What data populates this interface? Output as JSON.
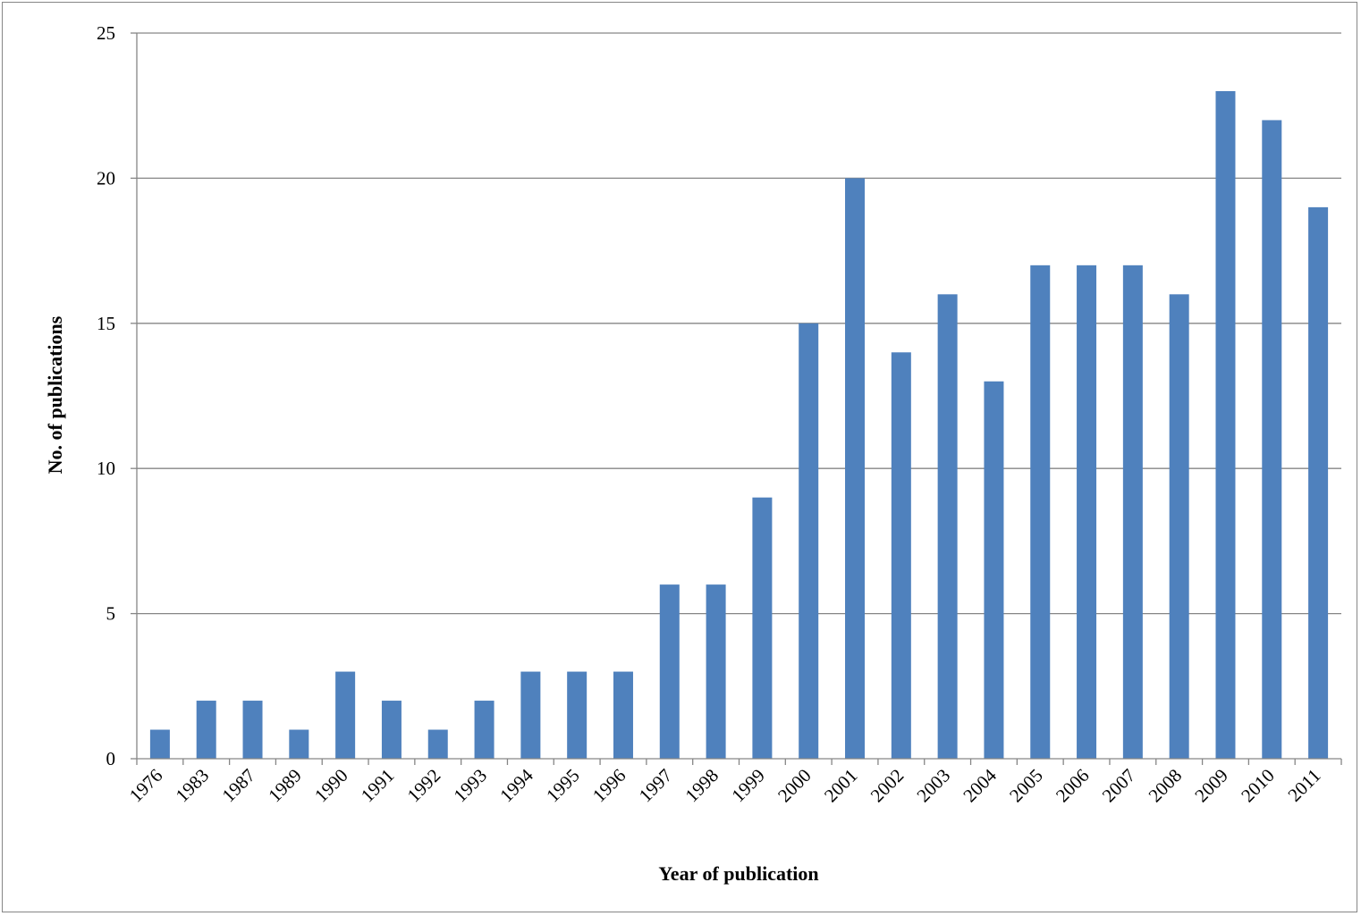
{
  "chart_data": {
    "type": "bar",
    "title": "",
    "xlabel": "Year of publication",
    "ylabel": "No. of publications",
    "categories": [
      "1976",
      "1983",
      "1987",
      "1989",
      "1990",
      "1991",
      "1992",
      "1993",
      "1994",
      "1995",
      "1996",
      "1997",
      "1998",
      "1999",
      "2000",
      "2001",
      "2002",
      "2003",
      "2004",
      "2005",
      "2006",
      "2007",
      "2008",
      "2009",
      "2010",
      "2011"
    ],
    "values": [
      1,
      2,
      2,
      1,
      3,
      2,
      1,
      2,
      3,
      3,
      3,
      6,
      6,
      9,
      15,
      20,
      14,
      16,
      13,
      17,
      17,
      17,
      16,
      23,
      22,
      19
    ],
    "ylim": [
      0,
      25
    ],
    "yticks": [
      0,
      5,
      10,
      15,
      20,
      25
    ],
    "grid": true,
    "legend": "none",
    "bar_color": "#4f81bd",
    "gridline_color": "#868686"
  }
}
